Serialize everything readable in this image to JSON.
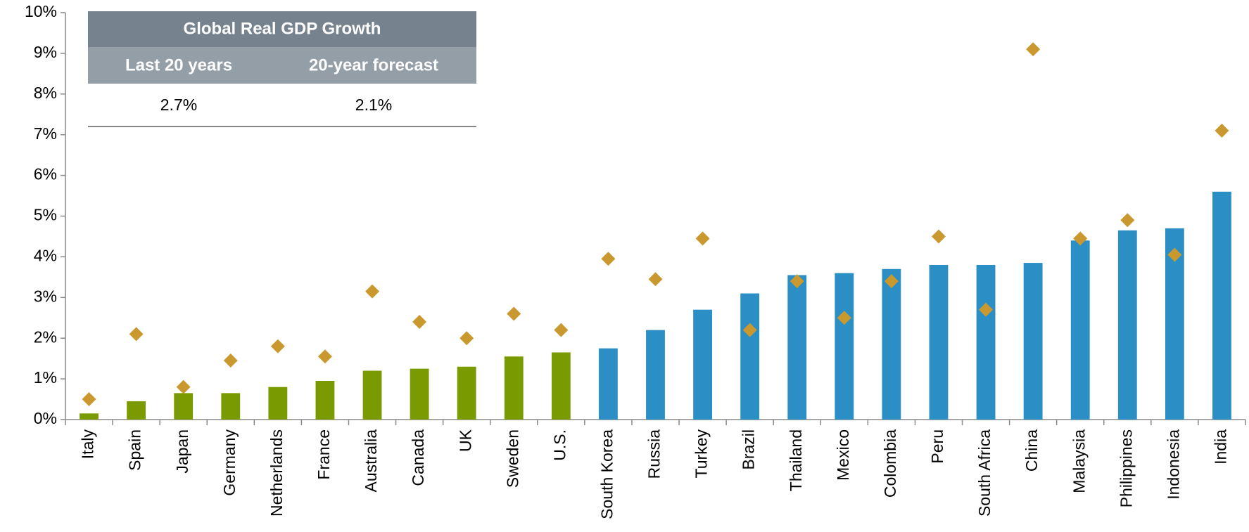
{
  "chart_data": {
    "type": "bar",
    "categories": [
      "Italy",
      "Spain",
      "Japan",
      "Germany",
      "Netherlands",
      "France",
      "Australia",
      "Canada",
      "UK",
      "Sweden",
      "U.S.",
      "South Korea",
      "Russia",
      "Turkey",
      "Brazil",
      "Thailand",
      "Mexico",
      "Colombia",
      "Peru",
      "South Africa",
      "China",
      "Malaysia",
      "Philippines",
      "Indonesia",
      "India"
    ],
    "series": [
      {
        "type": "bar",
        "colors": [
          "#7a9a01",
          "#7a9a01",
          "#7a9a01",
          "#7a9a01",
          "#7a9a01",
          "#7a9a01",
          "#7a9a01",
          "#7a9a01",
          "#7a9a01",
          "#7a9a01",
          "#7a9a01",
          "#2b8fc5",
          "#2b8fc5",
          "#2b8fc5",
          "#2b8fc5",
          "#2b8fc5",
          "#2b8fc5",
          "#2b8fc5",
          "#2b8fc5",
          "#2b8fc5",
          "#2b8fc5",
          "#2b8fc5",
          "#2b8fc5",
          "#2b8fc5",
          "#2b8fc5"
        ],
        "values": [
          0.15,
          0.45,
          0.65,
          0.65,
          0.8,
          0.95,
          1.2,
          1.25,
          1.3,
          1.55,
          1.65,
          1.75,
          2.2,
          2.7,
          3.1,
          3.55,
          3.6,
          3.7,
          3.8,
          3.8,
          3.85,
          4.4,
          4.65,
          4.7,
          5.6
        ]
      },
      {
        "type": "scatter",
        "color": "#c9992f",
        "values": [
          0.5,
          2.1,
          0.8,
          1.45,
          1.8,
          1.55,
          3.15,
          2.4,
          2.0,
          2.6,
          2.2,
          3.95,
          3.45,
          4.45,
          2.2,
          3.4,
          2.5,
          3.4,
          4.5,
          2.7,
          9.1,
          4.45,
          4.9,
          4.05,
          7.1
        ]
      }
    ],
    "ylim": [
      0,
      10
    ],
    "yticks": [
      {
        "value": 0,
        "label": "0%"
      },
      {
        "value": 1,
        "label": "1%"
      },
      {
        "value": 2,
        "label": "2%"
      },
      {
        "value": 3,
        "label": "3%"
      },
      {
        "value": 4,
        "label": "4%"
      },
      {
        "value": 5,
        "label": "5%"
      },
      {
        "value": 6,
        "label": "6%"
      },
      {
        "value": 7,
        "label": "7%"
      },
      {
        "value": 8,
        "label": "8%"
      },
      {
        "value": 9,
        "label": "9%"
      },
      {
        "value": 10,
        "label": "10%"
      }
    ],
    "table": {
      "title": "Global Real GDP Growth",
      "headers": [
        "Last 20 years",
        "20-year forecast"
      ],
      "rows": [
        [
          "2.7%",
          "2.1%"
        ]
      ]
    }
  }
}
